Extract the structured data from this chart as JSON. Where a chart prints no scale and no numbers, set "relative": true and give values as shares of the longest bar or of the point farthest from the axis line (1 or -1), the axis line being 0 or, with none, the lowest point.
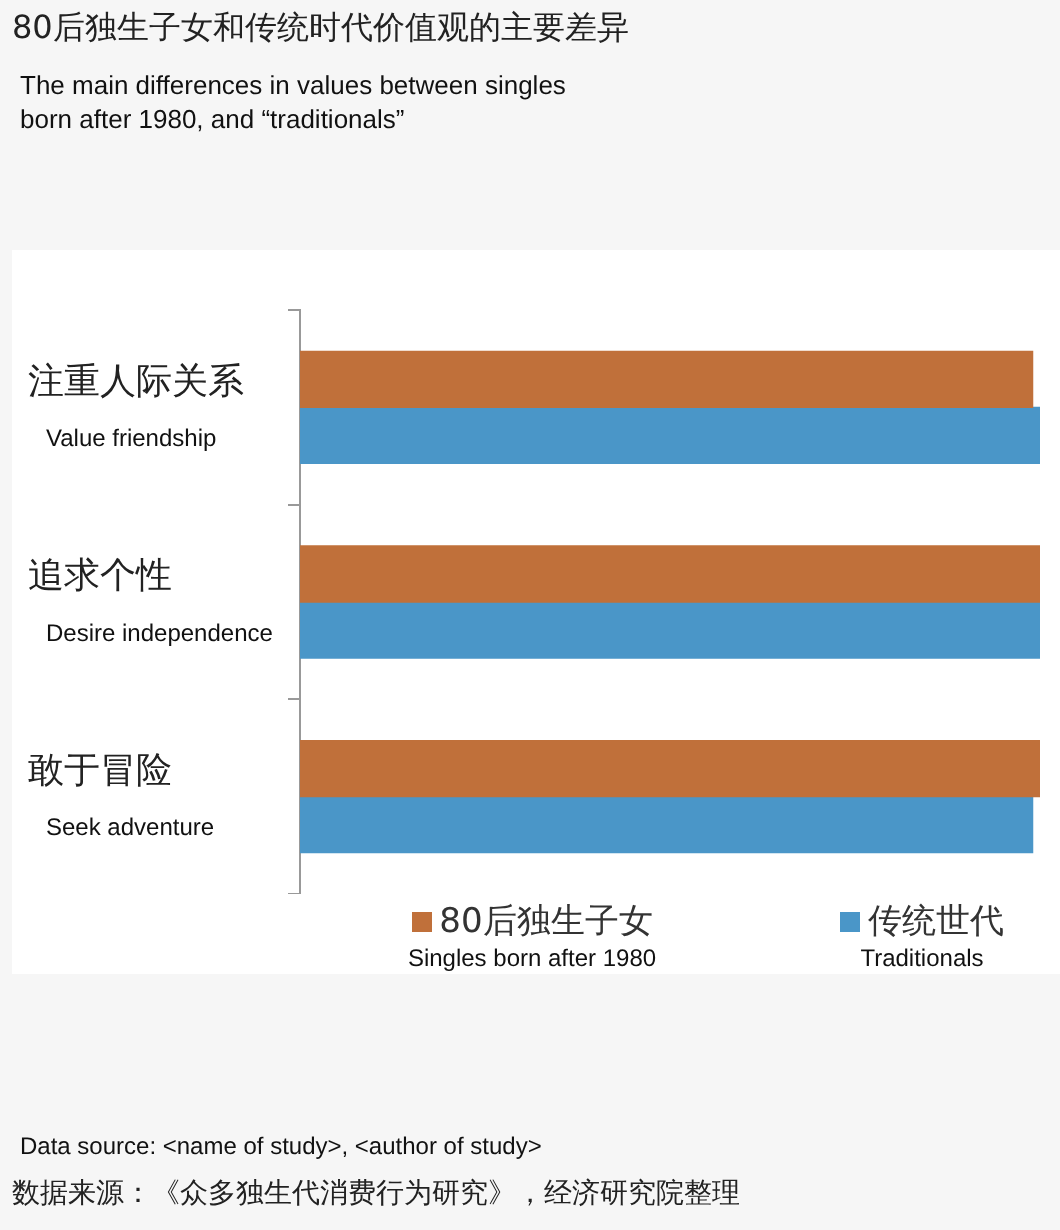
{
  "chart_data": {
    "type": "bar",
    "orientation": "horizontal",
    "relative": true,
    "title": "80后独生子女和传统时代价值观的主要差异",
    "subtitle": "The main differences in values between singles\nborn after 1980, and “traditionals”",
    "categories": [
      "注重人际关系\nValue friendship",
      "追求个性\nDesire independence",
      "敢于冒险\nSeek adventure"
    ],
    "series": [
      {
        "name": "80后独生子女\nSingles born after 1980",
        "color": "#c0703a",
        "values": [
          0.99,
          1,
          1
        ]
      },
      {
        "name": "传统世代\nTraditionals",
        "color": "#4a96c8",
        "values": [
          1,
          1,
          0.99
        ]
      }
    ],
    "legend": "bottom",
    "annotations": [
      "Data source: <name of study>, <author of study>",
      "数据来源：《众多独生代消费行为研究》，经济研究院整理"
    ]
  }
}
